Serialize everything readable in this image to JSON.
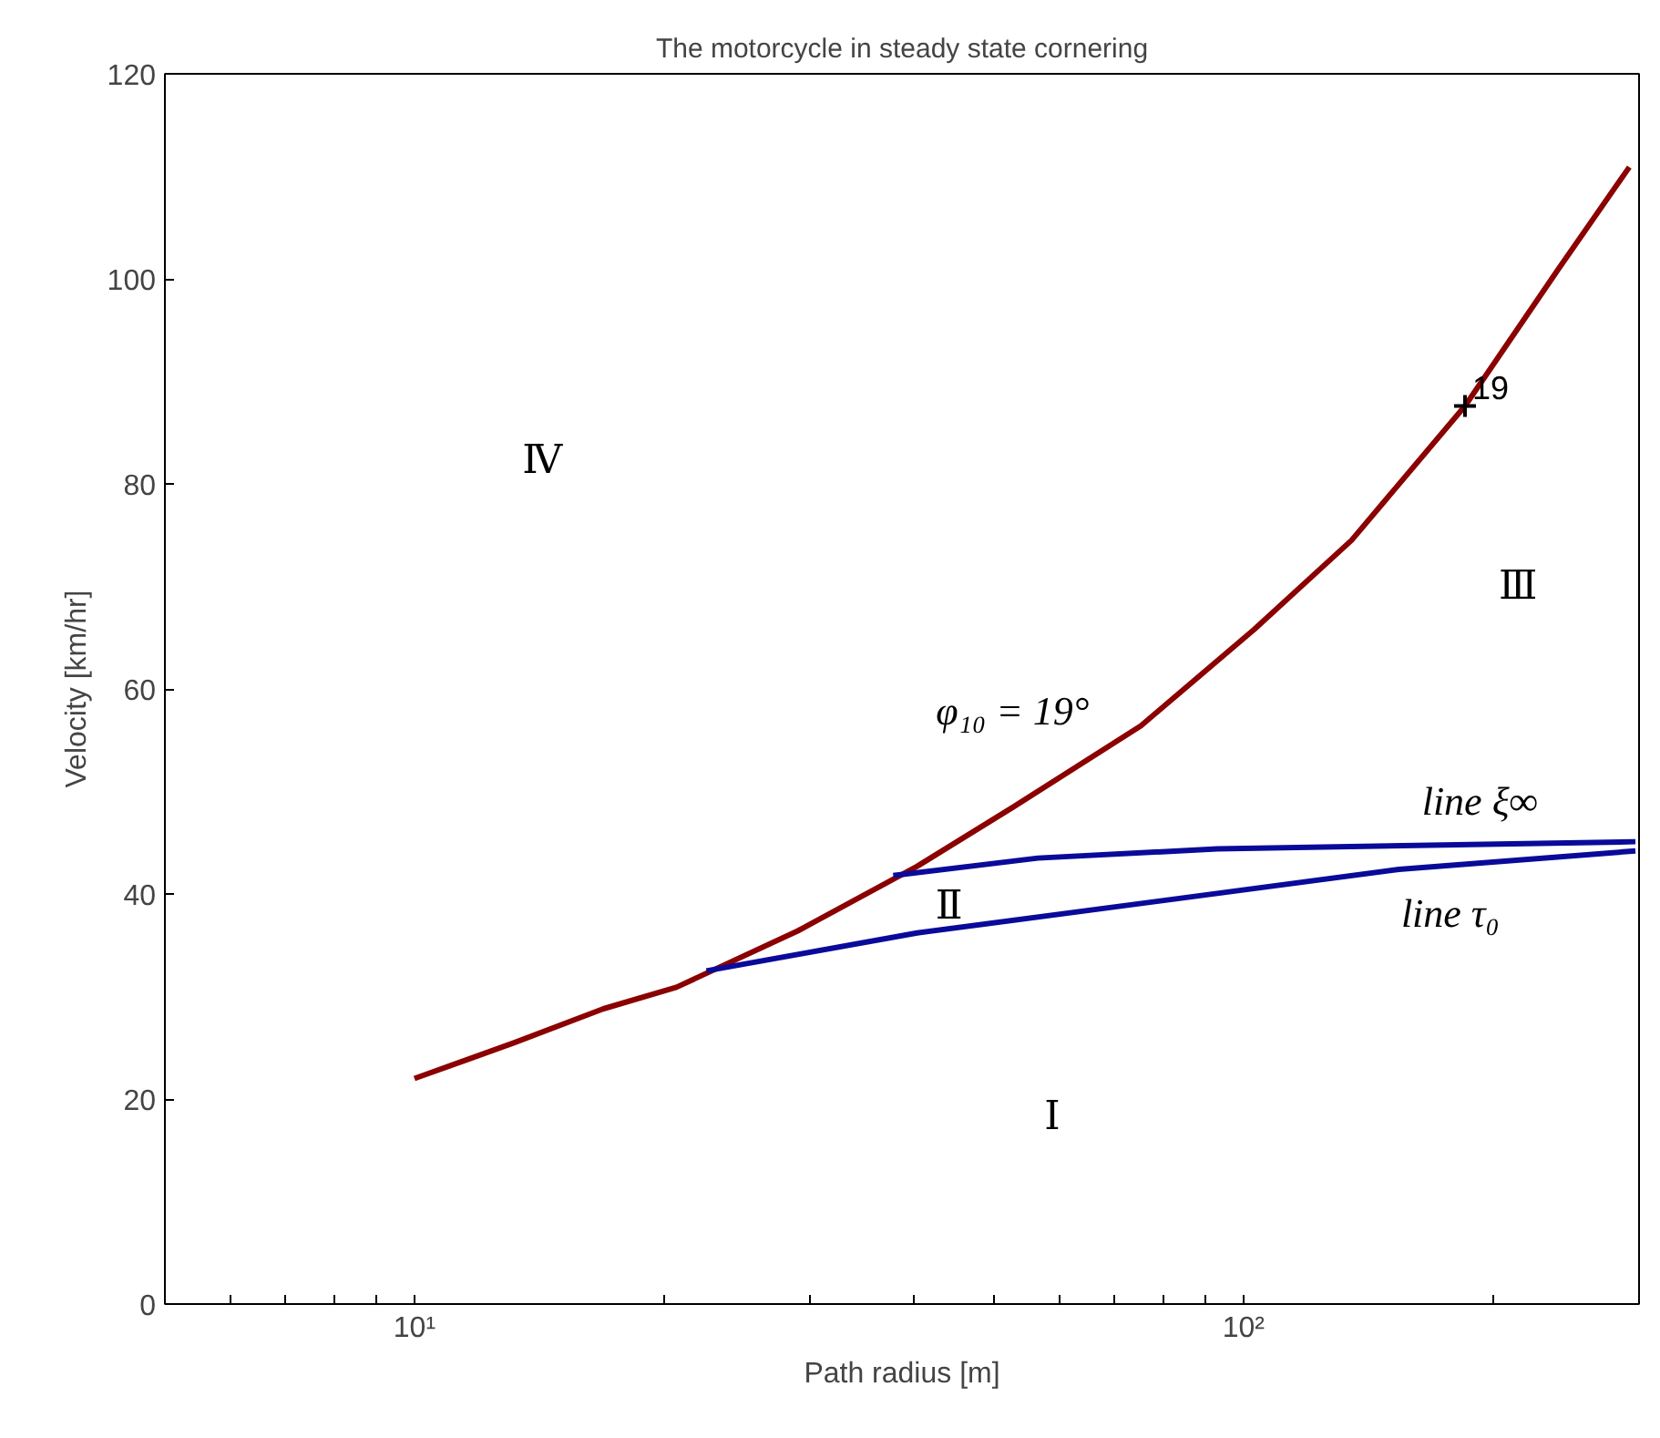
{
  "chart_data": {
    "type": "line",
    "title": "The motorcycle in steady state cornering",
    "xlabel": "Path radius [m]",
    "ylabel": "Velocity [km/hr]",
    "log": "x",
    "grid": false,
    "xlim": [
      5,
      300
    ],
    "ylim": [
      0,
      120
    ],
    "xticks": [
      {
        "value": 5,
        "label": null
      },
      {
        "value": 6,
        "label": null
      },
      {
        "value": 7,
        "label": null
      },
      {
        "value": 8,
        "label": null
      },
      {
        "value": 9,
        "label": null
      },
      {
        "value": 10,
        "label": "10¹"
      },
      {
        "value": 20,
        "label": null
      },
      {
        "value": 30,
        "label": null
      },
      {
        "value": 40,
        "label": null
      },
      {
        "value": 50,
        "label": null
      },
      {
        "value": 60,
        "label": null
      },
      {
        "value": 70,
        "label": null
      },
      {
        "value": 80,
        "label": null
      },
      {
        "value": 90,
        "label": null
      },
      {
        "value": 100,
        "label": "10²"
      },
      {
        "value": 200,
        "label": null
      },
      {
        "value": 300,
        "label": null
      }
    ],
    "yticks": [
      0,
      20,
      40,
      60,
      80,
      100,
      120
    ],
    "series": [
      {
        "color": "#8b0000",
        "x": [
          10,
          13.2,
          16.9,
          20.7,
          29,
          40.4,
          52.8,
          75.2,
          103,
          135,
          185,
          240,
          292
        ],
        "values": [
          22,
          25.5,
          28.8,
          30.9,
          36.4,
          42.7,
          48.5,
          56.4,
          65.8,
          74.5,
          87.6,
          101,
          110.9
        ]
      },
      {
        "color": "#0a0a9a",
        "x": [
          37.8,
          56.5,
          93,
          297
        ],
        "values": [
          41.8,
          43.5,
          44.4,
          45.1
        ]
      },
      {
        "color": "#0a0a9a",
        "x": [
          22.5,
          40.4,
          79,
          154,
          297
        ],
        "values": [
          32.5,
          36.2,
          39.3,
          42.4,
          44.2
        ]
      },
      {
        "type": "scatter",
        "color": "#000000",
        "marker": "cross",
        "x": [
          185
        ],
        "values": [
          87.6
        ]
      }
    ],
    "annotations": [
      {
        "text": "19",
        "x": 185,
        "y": 87.6
      },
      "Ⅳ",
      "Ⅲ",
      "Ⅱ",
      "Ⅰ",
      "φ₁₀ = 19°",
      "line ξ∞",
      "line τ₀"
    ]
  }
}
